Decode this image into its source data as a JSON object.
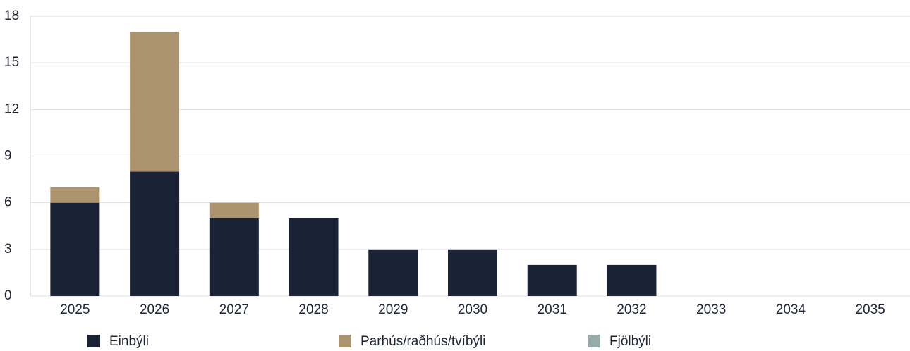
{
  "chart_data": {
    "type": "stacked_bar",
    "categories": [
      "2025",
      "2026",
      "2027",
      "2028",
      "2029",
      "2030",
      "2031",
      "2032",
      "2033",
      "2034",
      "2035"
    ],
    "series": [
      {
        "name": "Einbýli",
        "color": "#1a2335",
        "values": [
          6,
          8,
          5,
          5,
          3,
          3,
          2,
          2,
          0,
          0,
          0
        ]
      },
      {
        "name": "Parhús/raðhús/tvíbýli",
        "color": "#ad9470",
        "values": [
          1,
          9,
          1,
          0,
          0,
          0,
          0,
          0,
          0,
          0,
          0
        ]
      },
      {
        "name": "Fjölbýli",
        "color": "#95aca8",
        "values": [
          0,
          0,
          0,
          0,
          0,
          0,
          0,
          0,
          0,
          0,
          0
        ]
      }
    ],
    "ylim": [
      0,
      18
    ],
    "yticks": [
      0,
      3,
      6,
      9,
      12,
      15,
      18
    ],
    "grid": true
  }
}
